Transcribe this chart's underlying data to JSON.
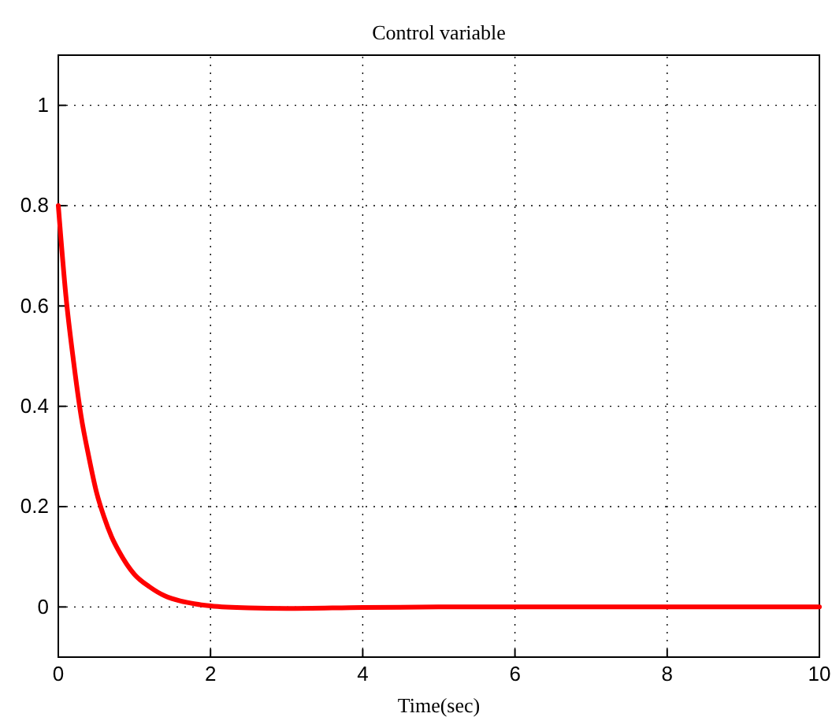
{
  "chart_data": {
    "type": "line",
    "title": "Control variable",
    "xlabel": "Time(sec)",
    "x": [
      0,
      0.1,
      0.2,
      0.3,
      0.4,
      0.5,
      0.6,
      0.7,
      0.8,
      0.9,
      1.0,
      1.2,
      1.4,
      1.6,
      1.8,
      2.0,
      2.5,
      3,
      4,
      5,
      6,
      8,
      10
    ],
    "series": [
      {
        "color": "#ff0000",
        "values": [
          0.8,
          0.62,
          0.49,
          0.38,
          0.3,
          0.23,
          0.18,
          0.14,
          0.11,
          0.085,
          0.065,
          0.04,
          0.022,
          0.012,
          0.006,
          0.002,
          -0.002,
          -0.003,
          -0.001,
          0,
          0,
          0,
          0
        ]
      }
    ],
    "xlim": [
      0,
      10
    ],
    "xticks": [
      0,
      2,
      4,
      6,
      8,
      10
    ],
    "ylim": [
      -0.1,
      1.1
    ],
    "yticks": [
      0,
      0.2,
      0.4,
      0.6,
      0.8,
      1
    ],
    "grid": true,
    "line_style": "solid",
    "marker": "none"
  }
}
